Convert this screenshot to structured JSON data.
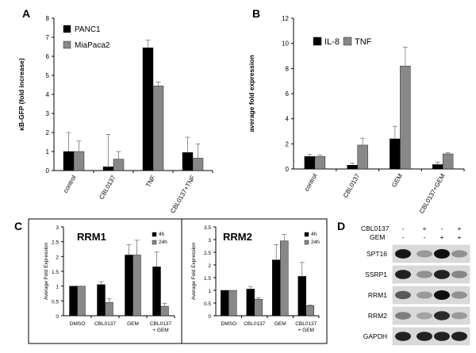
{
  "panels": {
    "a": "A",
    "b": "B",
    "c": "C",
    "d": "D"
  },
  "colors": {
    "black": "#000000",
    "gray": "#888888",
    "error": "#777777"
  },
  "chart_data": [
    {
      "panel": "A",
      "type": "bar",
      "ylabel": "κB-GFP (fold increase)",
      "ylim": [
        0,
        8
      ],
      "yticks": [
        0,
        1,
        2,
        3,
        4,
        5,
        6,
        7,
        8
      ],
      "categories": [
        "control",
        "CBL0137",
        "TNF",
        "CBL0137+TNF"
      ],
      "series": [
        {
          "name": "PANC1",
          "color": "#000000",
          "values": [
            1.0,
            0.2,
            6.45,
            0.95
          ],
          "errors": [
            1.0,
            1.7,
            0.4,
            0.8
          ]
        },
        {
          "name": "MiaPaca2",
          "color": "#888888",
          "values": [
            1.0,
            0.6,
            4.45,
            0.65
          ],
          "errors": [
            0.55,
            0.4,
            0.2,
            0.75
          ]
        }
      ],
      "legend_position": "top-left"
    },
    {
      "panel": "B",
      "type": "bar",
      "ylabel": "average fold expression",
      "ylim": [
        0,
        12
      ],
      "yticks": [
        0,
        2,
        4,
        6,
        8,
        10,
        12
      ],
      "categories": [
        "control",
        "CBL0137",
        "GEM",
        "CBL0137+GEM"
      ],
      "series": [
        {
          "name": "IL-8",
          "color": "#000000",
          "values": [
            1.0,
            0.3,
            2.4,
            0.35
          ],
          "errors": [
            0.15,
            0.15,
            1.0,
            0.2
          ]
        },
        {
          "name": "TNF",
          "color": "#888888",
          "values": [
            1.0,
            1.9,
            8.2,
            1.2
          ],
          "errors": [
            0.1,
            0.55,
            1.5,
            0.1
          ]
        }
      ],
      "legend_position": "top-left"
    },
    {
      "panel": "C",
      "subtitle": "RRM1",
      "type": "bar",
      "ylabel": "Average Fold Expression",
      "ylim": [
        0,
        3
      ],
      "yticks": [
        0,
        0.5,
        1,
        1.5,
        2,
        2.5,
        3
      ],
      "categories": [
        "DMSO",
        "CBL0137",
        "GEM",
        "CBL0137\n+ GEM"
      ],
      "series": [
        {
          "name": "4h",
          "color": "#000000",
          "values": [
            1.0,
            1.05,
            2.05,
            1.65
          ],
          "errors": [
            0,
            0.1,
            0.35,
            0.5
          ]
        },
        {
          "name": "24h",
          "color": "#888888",
          "values": [
            1.0,
            0.45,
            2.05,
            0.32
          ],
          "errors": [
            0,
            0.12,
            0.5,
            0.1
          ]
        }
      ],
      "legend_position": "top-right"
    },
    {
      "panel": "C",
      "subtitle": "RRM2",
      "type": "bar",
      "ylabel": "Average Fold Expression",
      "ylim": [
        0,
        3.5
      ],
      "yticks": [
        0,
        0.5,
        1,
        1.5,
        2,
        2.5,
        3,
        3.5
      ],
      "categories": [
        "DMSO",
        "CBL0137",
        "GEM",
        "CBL0137\n+ GEM"
      ],
      "series": [
        {
          "name": "4h",
          "color": "#000000",
          "values": [
            1.0,
            1.05,
            2.2,
            1.55
          ],
          "errors": [
            0,
            0.1,
            0.6,
            0.55
          ]
        },
        {
          "name": "24h",
          "color": "#888888",
          "values": [
            1.0,
            0.65,
            2.95,
            0.4
          ],
          "errors": [
            0,
            0.05,
            0.25,
            0.02
          ]
        }
      ],
      "legend_position": "top-right"
    }
  ],
  "blot": {
    "conditions": [
      {
        "label": "CBL0137",
        "signs": [
          "-",
          "+",
          "-",
          "+"
        ]
      },
      {
        "label": "GEM",
        "signs": [
          "-",
          "-",
          "+",
          "+"
        ]
      }
    ],
    "rows": [
      {
        "label": "SPT16",
        "intensities": [
          0.95,
          0.25,
          1.0,
          0.3
        ]
      },
      {
        "label": "SSRP1",
        "intensities": [
          0.9,
          0.3,
          0.9,
          0.35
        ]
      },
      {
        "label": "RRM1",
        "intensities": [
          0.6,
          0.25,
          1.0,
          0.3
        ]
      },
      {
        "label": "RRM2",
        "intensities": [
          0.4,
          0.2,
          0.85,
          0.25
        ]
      },
      {
        "label": "GAPDH",
        "intensities": [
          0.9,
          0.9,
          0.9,
          0.9
        ]
      }
    ]
  }
}
